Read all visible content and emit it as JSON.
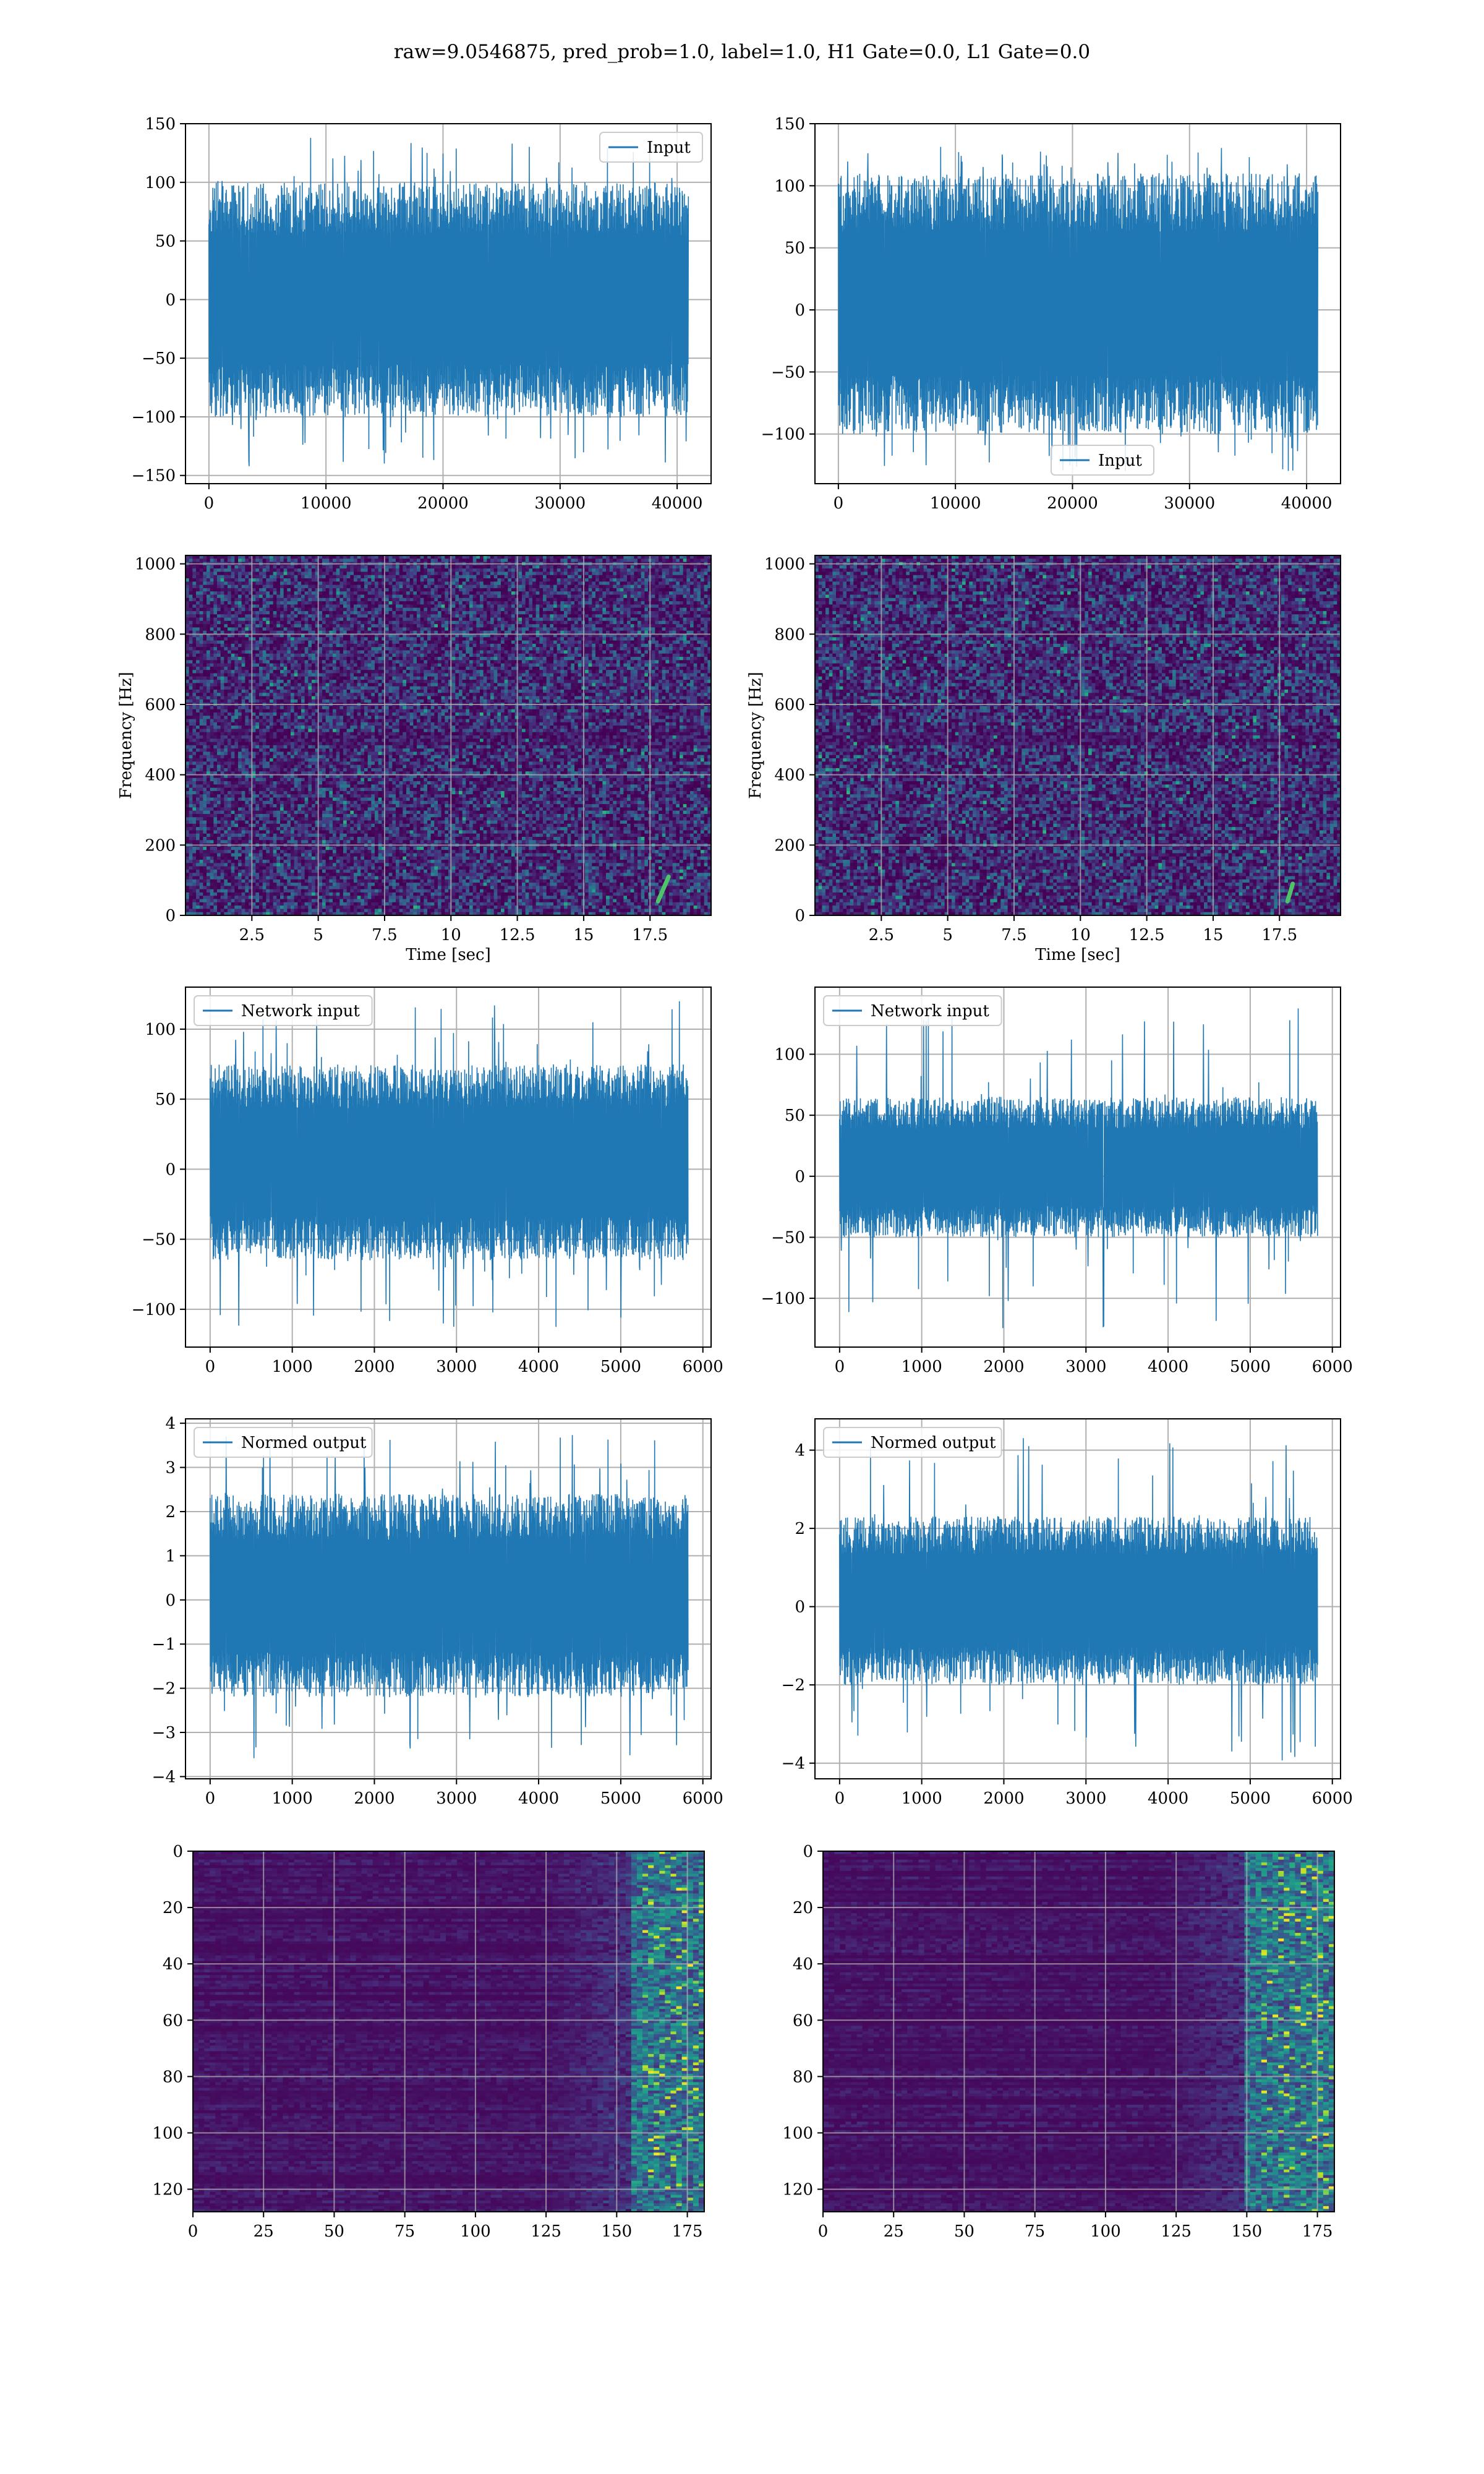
{
  "figure_title": "raw=9.0546875, pred_prob=1.0, label=1.0, H1 Gate=0.0, L1 Gate=0.0",
  "colors": {
    "series": "#1f77b4",
    "grid": "#b0b0b0",
    "frame": "#000000",
    "viridis_low": "#440154",
    "viridis_high": "#fde725"
  },
  "chart_data": [
    {
      "id": "h1-input",
      "type": "line",
      "series": [
        {
          "name": "Input",
          "envelope": [
            -100,
            100
          ],
          "extremes": [
            -145,
            138
          ]
        }
      ],
      "x_range": [
        0,
        40960
      ],
      "xticks": [
        0,
        10000,
        20000,
        30000,
        40000
      ],
      "xlim": [
        -2000,
        42900
      ],
      "ylim": [
        -157,
        150
      ],
      "yticks": [
        -150,
        -100,
        -50,
        0,
        50,
        100,
        150
      ],
      "legend": "upper right",
      "grid": true
    },
    {
      "id": "l1-input",
      "type": "line",
      "series": [
        {
          "name": "Input",
          "envelope": [
            -100,
            110
          ],
          "extremes": [
            -130,
            135
          ]
        }
      ],
      "x_range": [
        0,
        40960
      ],
      "xticks": [
        0,
        10000,
        20000,
        30000,
        40000
      ],
      "xlim": [
        -2000,
        42900
      ],
      "ylim": [
        -140,
        150
      ],
      "yticks": [
        -100,
        -50,
        0,
        50,
        100,
        150
      ],
      "legend": "lower center",
      "grid": true
    },
    {
      "id": "h1-spectrogram",
      "type": "heatmap",
      "xlabel": "Time [sec]",
      "ylabel": "Frequency [Hz]",
      "xlim": [
        0,
        19.8
      ],
      "ylim": [
        0,
        1024
      ],
      "xticks": [
        2.5,
        5.0,
        7.5,
        10.0,
        12.5,
        15.0,
        17.5
      ],
      "yticks": [
        0,
        200,
        400,
        600,
        800,
        1000
      ],
      "chirp": {
        "t": [
          17.8,
          18.2
        ],
        "f": [
          40,
          110
        ]
      },
      "grid": true
    },
    {
      "id": "l1-spectrogram",
      "type": "heatmap",
      "xlabel": "Time [sec]",
      "ylabel": "Frequency [Hz]",
      "xlim": [
        0,
        19.8
      ],
      "ylim": [
        0,
        1024
      ],
      "xticks": [
        2.5,
        5.0,
        7.5,
        10.0,
        12.5,
        15.0,
        17.5
      ],
      "yticks": [
        0,
        200,
        400,
        600,
        800,
        1000
      ],
      "chirp": {
        "t": [
          17.8,
          18.0
        ],
        "f": [
          40,
          90
        ]
      },
      "grid": true
    },
    {
      "id": "h1-network-input",
      "type": "line",
      "series": [
        {
          "name": "Network input",
          "envelope": [
            -65,
            75
          ],
          "extremes": [
            -115,
            120
          ]
        }
      ],
      "x_range": [
        0,
        5820
      ],
      "xticks": [
        0,
        1000,
        2000,
        3000,
        4000,
        5000,
        6000
      ],
      "xlim": [
        -300,
        6100
      ],
      "ylim": [
        -127,
        130
      ],
      "yticks": [
        -100,
        -50,
        0,
        50,
        100
      ],
      "legend": "upper left",
      "grid": true
    },
    {
      "id": "l1-network-input",
      "type": "line",
      "series": [
        {
          "name": "Network input",
          "envelope": [
            -50,
            65
          ],
          "extremes": [
            -130,
            140
          ]
        }
      ],
      "x_range": [
        0,
        5820
      ],
      "xticks": [
        0,
        1000,
        2000,
        3000,
        4000,
        5000,
        6000
      ],
      "xlim": [
        -300,
        6100
      ],
      "ylim": [
        -140,
        155
      ],
      "yticks": [
        -100,
        -50,
        0,
        50,
        100
      ],
      "legend": "upper left",
      "grid": true
    },
    {
      "id": "h1-normed-output",
      "type": "line",
      "series": [
        {
          "name": "Normed output",
          "envelope": [
            -2.2,
            2.4
          ],
          "extremes": [
            -3.6,
            3.8
          ]
        }
      ],
      "x_range": [
        0,
        5820
      ],
      "xticks": [
        0,
        1000,
        2000,
        3000,
        4000,
        5000,
        6000
      ],
      "xlim": [
        -300,
        6100
      ],
      "ylim": [
        -4.05,
        4.1
      ],
      "yticks": [
        -4,
        -3,
        -2,
        -1,
        0,
        1,
        2,
        3,
        4
      ],
      "legend": "upper left",
      "grid": true
    },
    {
      "id": "l1-normed-output",
      "type": "line",
      "series": [
        {
          "name": "Normed output",
          "envelope": [
            -2.0,
            2.3
          ],
          "extremes": [
            -4.0,
            4.4
          ]
        }
      ],
      "x_range": [
        0,
        5820
      ],
      "xticks": [
        0,
        1000,
        2000,
        3000,
        4000,
        5000,
        6000
      ],
      "xlim": [
        -300,
        6100
      ],
      "ylim": [
        -4.4,
        4.8
      ],
      "yticks": [
        -4,
        -2,
        0,
        2,
        4
      ],
      "legend": "upper left",
      "grid": true
    },
    {
      "id": "h1-feature-map",
      "type": "heatmap",
      "xlim": [
        0,
        181
      ],
      "ylim": [
        128,
        0
      ],
      "xticks": [
        0,
        25,
        50,
        75,
        100,
        125,
        150,
        175
      ],
      "yticks": [
        0,
        20,
        40,
        60,
        80,
        100,
        120
      ],
      "hot_band_x": [
        155,
        181
      ],
      "grid": true
    },
    {
      "id": "l1-feature-map",
      "type": "heatmap",
      "xlim": [
        0,
        181
      ],
      "ylim": [
        128,
        0
      ],
      "xticks": [
        0,
        25,
        50,
        75,
        100,
        125,
        150,
        175
      ],
      "yticks": [
        0,
        20,
        40,
        60,
        80,
        100,
        120
      ],
      "hot_band_x": [
        150,
        181
      ],
      "grid": true
    }
  ]
}
